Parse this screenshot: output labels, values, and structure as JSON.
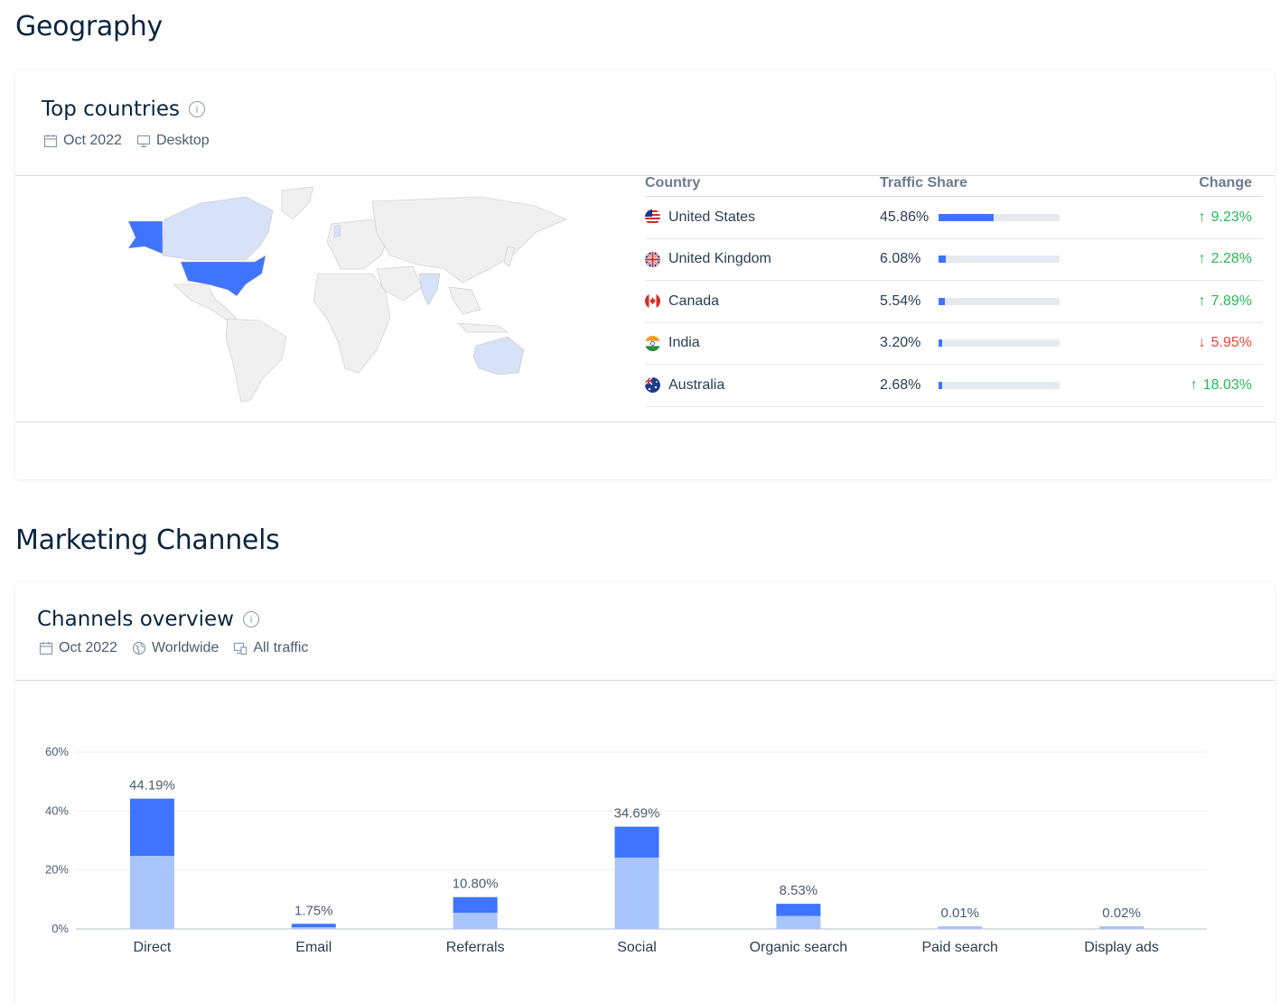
{
  "geography": {
    "section_title": "Geography",
    "card_title": "Top countries",
    "info_icon": "i",
    "date": "Oct 2022",
    "device": "Desktop",
    "table": {
      "headers": [
        "Country",
        "Traffic Share",
        "Change"
      ],
      "rows": [
        {
          "country": "United States",
          "share": "45.86%",
          "share_value": 45.86,
          "change": "9.23%",
          "direction": "up",
          "flag": "us-flag-icon"
        },
        {
          "country": "United Kingdom",
          "share": "6.08%",
          "share_value": 6.08,
          "change": "2.28%",
          "direction": "up",
          "flag": "uk-flag-icon"
        },
        {
          "country": "Canada",
          "share": "5.54%",
          "share_value": 5.54,
          "change": "7.89%",
          "direction": "up",
          "flag": "ca-flag-icon"
        },
        {
          "country": "India",
          "share": "3.20%",
          "share_value": 3.2,
          "change": "5.95%",
          "direction": "down",
          "flag": "in-flag-icon"
        },
        {
          "country": "Australia",
          "share": "2.68%",
          "share_value": 2.68,
          "change": "18.03%",
          "direction": "up",
          "flag": "au-flag-icon"
        }
      ]
    },
    "colors": {
      "highlight": "#3e74fe",
      "secondary": "#d7e1f7",
      "land": "#f0f0f0",
      "up": "#2bb656",
      "down": "#f04438"
    }
  },
  "channels": {
    "section_title": "Marketing Channels",
    "card_title": "Channels overview",
    "info_icon": "i",
    "date": "Oct 2022",
    "region": "Worldwide",
    "traffic": "All traffic"
  },
  "chart_data": {
    "type": "bar",
    "stacked": true,
    "categories": [
      "Direct",
      "Email",
      "Referrals",
      "Social",
      "Organic search",
      "Paid search",
      "Display ads"
    ],
    "totals": [
      44.19,
      1.75,
      10.8,
      34.69,
      8.53,
      0.01,
      0.02
    ],
    "value_labels": [
      "44.19%",
      "1.75%",
      "10.80%",
      "34.69%",
      "8.53%",
      "0.01%",
      "0.02%"
    ],
    "series": [
      {
        "values": [
          24.8,
          0.6,
          5.5,
          24.2,
          4.4,
          0.01,
          0.02
        ],
        "color": "#a8c5fd"
      },
      {
        "values": [
          19.39,
          1.15,
          5.3,
          10.49,
          4.13,
          0.0,
          0.0
        ],
        "color": "#3e74fe"
      }
    ],
    "yticks": [
      "0%",
      "20%",
      "40%",
      "60%"
    ],
    "ylim": [
      0,
      60
    ],
    "grid": true
  }
}
